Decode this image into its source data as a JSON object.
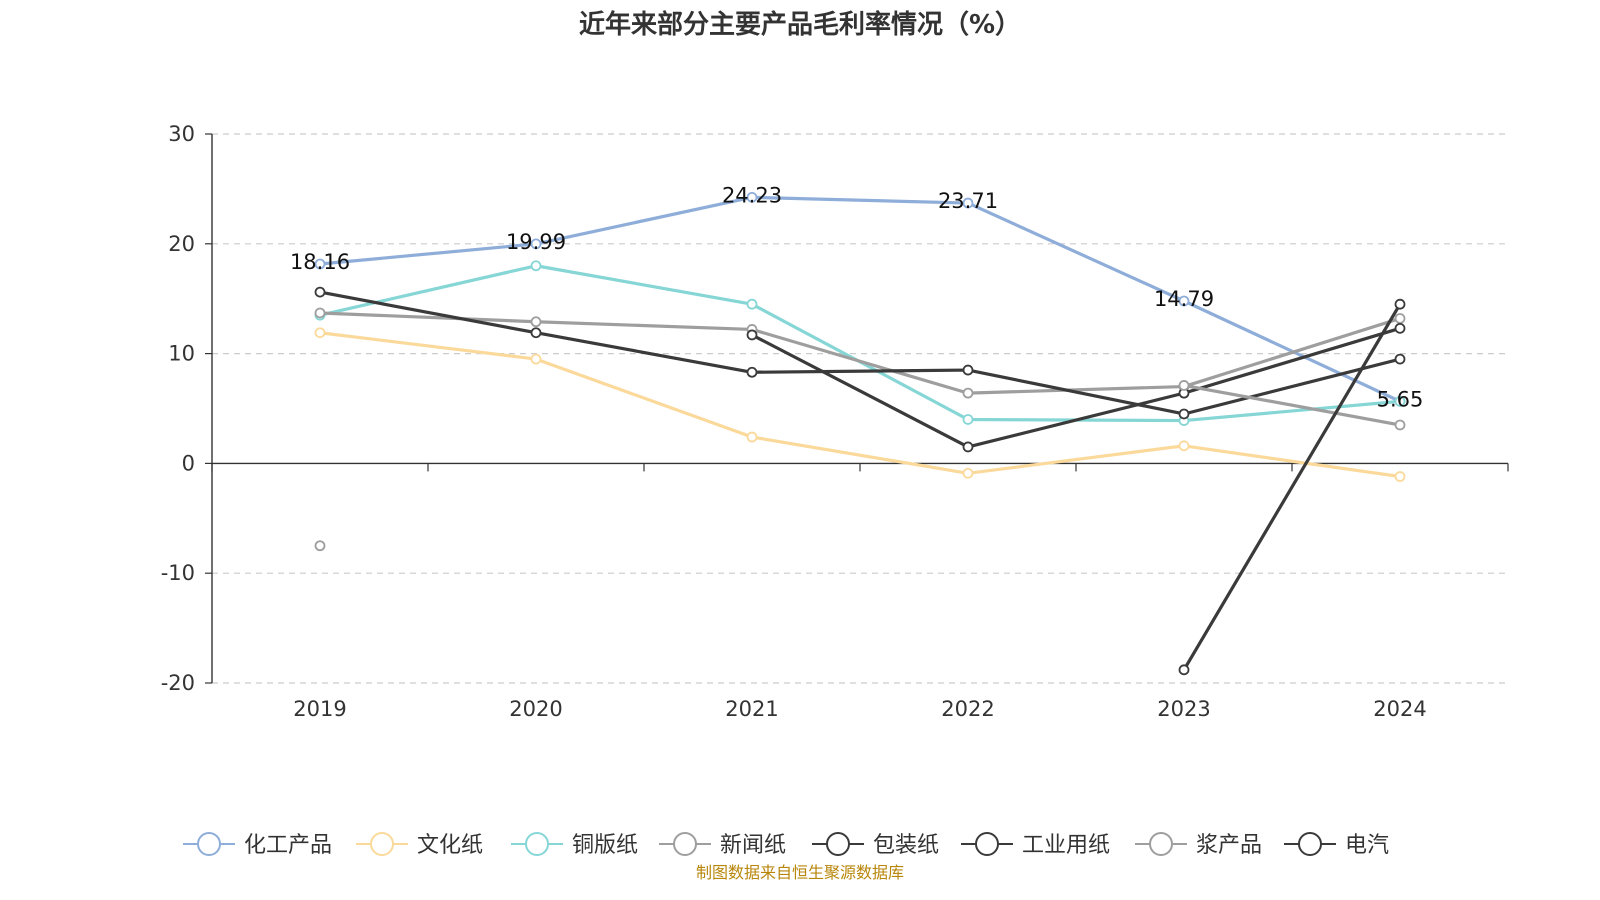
{
  "chart_data": {
    "type": "line",
    "title": "近年来部分主要产品毛利率情况（%）",
    "categories": [
      "2019",
      "2020",
      "2021",
      "2022",
      "2023",
      "2024"
    ],
    "ylim": [
      -20,
      30
    ],
    "yticks": [
      30,
      20,
      10,
      0,
      -10,
      -20
    ],
    "grid": true,
    "legend_position": "bottom",
    "series": [
      {
        "name": "化工产品",
        "color": "#8eadd9",
        "labeled": true,
        "values": [
          18.16,
          19.99,
          24.23,
          23.71,
          14.79,
          5.65
        ],
        "labels": [
          "18.16",
          "19.99",
          "24.23",
          "23.71",
          "14.79",
          "5.65"
        ]
      },
      {
        "name": "文化纸",
        "color": "#fbd99a",
        "values": [
          11.9,
          9.5,
          2.4,
          -0.9,
          1.6,
          -1.2
        ]
      },
      {
        "name": "铜版纸",
        "color": "#86d6d6",
        "values": [
          13.5,
          18.0,
          14.5,
          4.0,
          3.9,
          5.65
        ]
      },
      {
        "name": "新闻纸",
        "color": "#9e9e9e",
        "values": [
          13.7,
          12.9,
          12.2,
          6.4,
          7.0,
          13.2
        ]
      },
      {
        "name": "包装纸",
        "color": "#3a3a3a",
        "values": [
          15.6,
          11.9,
          8.3,
          8.5,
          4.5,
          9.5
        ]
      },
      {
        "name": "工业用纸",
        "color": "#3a3a3a",
        "values": [
          null,
          null,
          11.7,
          1.5,
          6.4,
          12.3
        ]
      },
      {
        "name": "浆产品",
        "color": "#9e9e9e",
        "values": [
          -7.5,
          null,
          null,
          null,
          7.1,
          3.5
        ]
      },
      {
        "name": "电汽",
        "color": "#3a3a3a",
        "values": [
          null,
          null,
          null,
          null,
          -18.8,
          14.5
        ]
      }
    ]
  },
  "source_note": "制图数据来自恒生聚源数据库"
}
